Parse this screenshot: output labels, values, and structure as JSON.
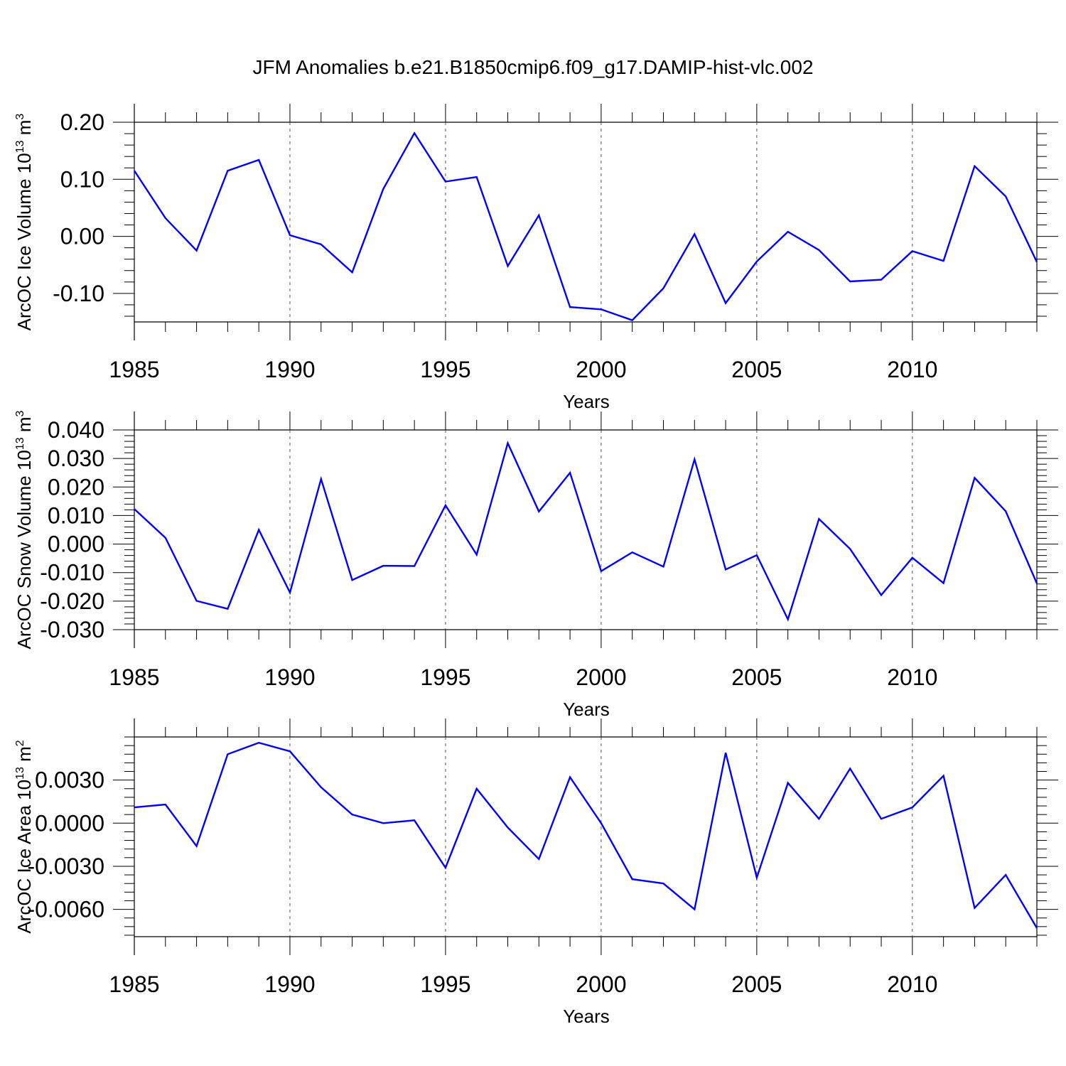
{
  "title": "JFM Anomalies b.e21.B1850cmip6.f09_g17.DAMIP-hist-vlc.002",
  "colors": {
    "series": "#0000ff",
    "axis": "#000000",
    "grid": "#555555"
  },
  "chart_data": [
    {
      "type": "line",
      "ylabel": "ArcOC Ice Volume 10",
      "ylabel_exp": "13",
      "ylabel_unit": " m",
      "ylabel_unit_exp": "3",
      "xlabel": "Years",
      "xlim": [
        1985,
        2014
      ],
      "ylim": [
        -0.15,
        0.2
      ],
      "yticks": [
        "0.20",
        "0.10",
        "0.00",
        "-0.10"
      ],
      "ytick_values": [
        0.2,
        0.1,
        0.0,
        -0.1
      ],
      "xticks": [
        "1985",
        "1990",
        "1995",
        "2000",
        "2005",
        "2010"
      ],
      "xtick_values": [
        1985,
        1990,
        1995,
        2000,
        2005,
        2010
      ],
      "grid": "vertical dashed at major x ticks",
      "x": [
        1985,
        1986,
        1987,
        1988,
        1989,
        1990,
        1991,
        1992,
        1993,
        1994,
        1995,
        1996,
        1997,
        1998,
        1999,
        2000,
        2001,
        2002,
        2003,
        2004,
        2005,
        2006,
        2007,
        2008,
        2009,
        2010,
        2011,
        2012,
        2013,
        2014
      ],
      "values": [
        0.115,
        0.032,
        -0.025,
        0.115,
        0.134,
        0.002,
        -0.014,
        -0.063,
        0.083,
        0.181,
        0.096,
        0.104,
        -0.052,
        0.037,
        -0.124,
        -0.128,
        -0.147,
        -0.091,
        0.004,
        -0.117,
        -0.044,
        0.008,
        -0.024,
        -0.079,
        -0.076,
        -0.026,
        -0.043,
        0.123,
        0.07,
        -0.045
      ]
    },
    {
      "type": "line",
      "ylabel": "ArcOC Snow Volume 10",
      "ylabel_exp": "13",
      "ylabel_unit": " m",
      "ylabel_unit_exp": "3",
      "xlabel": "Years",
      "xlim": [
        1985,
        2014
      ],
      "ylim": [
        -0.03,
        0.04
      ],
      "yticks": [
        "0.040",
        "0.030",
        "0.020",
        "0.010",
        "0.000",
        "-0.010",
        "-0.020",
        "-0.030"
      ],
      "ytick_values": [
        0.04,
        0.03,
        0.02,
        0.01,
        0.0,
        -0.01,
        -0.02,
        -0.03
      ],
      "xticks": [
        "1985",
        "1990",
        "1995",
        "2000",
        "2005",
        "2010"
      ],
      "xtick_values": [
        1985,
        1990,
        1995,
        2000,
        2005,
        2010
      ],
      "grid": "vertical dashed at major x ticks",
      "x": [
        1985,
        1986,
        1987,
        1988,
        1989,
        1990,
        1991,
        1992,
        1993,
        1994,
        1995,
        1996,
        1997,
        1998,
        1999,
        2000,
        2001,
        2002,
        2003,
        2004,
        2005,
        2006,
        2007,
        2008,
        2009,
        2010,
        2011,
        2012,
        2013,
        2014
      ],
      "values": [
        0.0123,
        0.0022,
        -0.0199,
        -0.0227,
        0.005,
        -0.017,
        0.0228,
        -0.0126,
        -0.0076,
        -0.0077,
        0.0136,
        -0.0037,
        0.0354,
        0.0114,
        0.025,
        -0.0095,
        -0.0029,
        -0.0079,
        0.0297,
        -0.0089,
        -0.0039,
        -0.0264,
        0.0088,
        -0.0017,
        -0.0179,
        -0.0048,
        -0.0137,
        0.0232,
        0.0115,
        -0.0138
      ]
    },
    {
      "type": "line",
      "ylabel": "ArcOC Ice Area 10",
      "ylabel_exp": "13",
      "ylabel_unit": " m",
      "ylabel_unit_exp": "2",
      "xlabel": "Years",
      "xlim": [
        1985,
        2014
      ],
      "ylim": [
        -0.0079,
        0.006
      ],
      "yticks": [
        "0.0030",
        "0.0000",
        "-0.0030",
        "-0.0060"
      ],
      "ytick_values": [
        0.003,
        0.0,
        -0.003,
        -0.006
      ],
      "xticks": [
        "1985",
        "1990",
        "1995",
        "2000",
        "2005",
        "2010"
      ],
      "xtick_values": [
        1985,
        1990,
        1995,
        2000,
        2005,
        2010
      ],
      "grid": "vertical dashed at major x ticks",
      "x": [
        1985,
        1986,
        1987,
        1988,
        1989,
        1990,
        1991,
        1992,
        1993,
        1994,
        1995,
        1996,
        1997,
        1998,
        1999,
        2000,
        2001,
        2002,
        2003,
        2004,
        2005,
        2006,
        2007,
        2008,
        2009,
        2010,
        2011,
        2012,
        2013,
        2014
      ],
      "values": [
        0.0011,
        0.0013,
        -0.0016,
        0.0048,
        0.0056,
        0.005,
        0.0025,
        0.0006,
        0.0,
        0.0002,
        -0.0031,
        0.0024,
        -0.0003,
        -0.0025,
        0.0032,
        0.0,
        -0.0039,
        -0.0042,
        -0.006,
        0.0049,
        -0.0038,
        0.0028,
        0.0003,
        0.0038,
        0.0003,
        0.0011,
        0.0033,
        -0.0059,
        -0.0036,
        -0.0073
      ]
    }
  ]
}
